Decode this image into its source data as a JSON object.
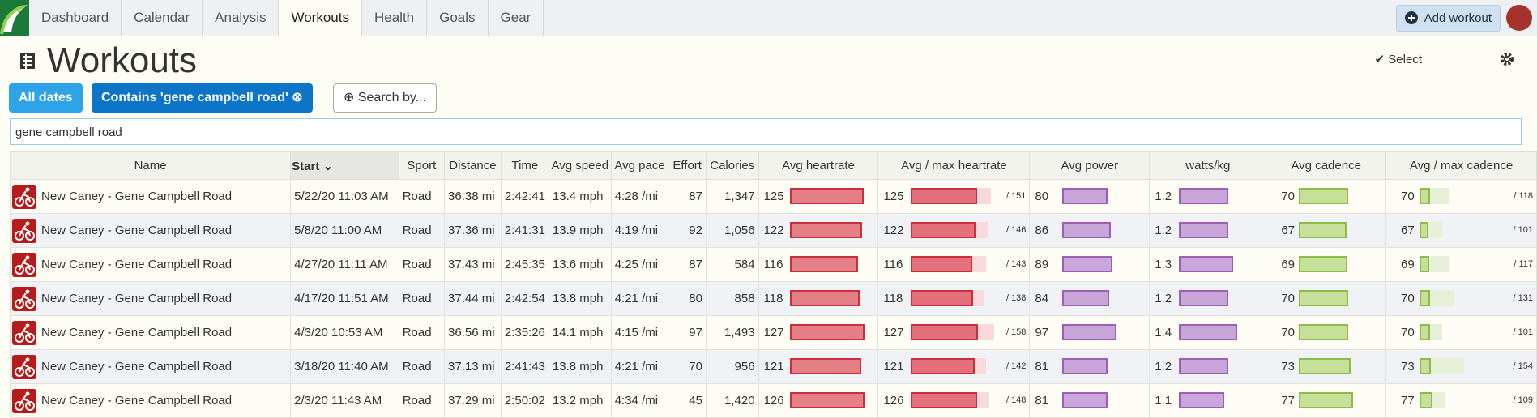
{
  "nav": {
    "items": [
      "Dashboard",
      "Calendar",
      "Analysis",
      "Workouts",
      "Health",
      "Goals",
      "Gear"
    ],
    "active": 3,
    "add_workout": "Add workout"
  },
  "header": {
    "title": "Workouts",
    "select": "Select"
  },
  "filters": {
    "all_dates": "All dates",
    "contains": "Contains 'gene campbell road'",
    "search_by": "Search by..."
  },
  "search": "gene campbell road",
  "table": {
    "sorted_column": 1,
    "columns": [
      "Name",
      "Start",
      "Sport",
      "Distance",
      "Time",
      "Avg speed",
      "Avg pace",
      "Effort",
      "Calories",
      "Avg heartrate",
      "Avg / max heartrate",
      "Avg power",
      "watts/kg",
      "Avg cadence",
      "Avg / max cadence"
    ],
    "rows": [
      {
        "name": "New Caney - Gene Campbell Road",
        "start": "5/22/20 11:03 AM",
        "sport": "Road",
        "distance": "36.38 mi",
        "time": "2:42:41",
        "speed": "13.4 mph",
        "pace": "4:28 /mi",
        "effort": 87,
        "calories": "1,347",
        "hr": 125,
        "max_hr": {
          "value": 151,
          "label": "/ 151"
        },
        "power": 80,
        "wkg": 1.2,
        "cadence": 70,
        "max_cadence": {
          "value": 118,
          "label": "/ 118"
        }
      },
      {
        "name": "New Caney - Gene Campbell Road",
        "start": "5/8/20 11:00 AM",
        "sport": "Road",
        "distance": "37.36 mi",
        "time": "2:41:31",
        "speed": "13.9 mph",
        "pace": "4:19 /mi",
        "effort": 92,
        "calories": "1,056",
        "hr": 122,
        "max_hr": {
          "value": 146,
          "label": "/ 146"
        },
        "power": 86,
        "wkg": 1.2,
        "cadence": 67,
        "max_cadence": {
          "value": 101,
          "label": "/ 101"
        }
      },
      {
        "name": "New Caney - Gene Campbell Road",
        "start": "4/27/20 11:11 AM",
        "sport": "Road",
        "distance": "37.43 mi",
        "time": "2:45:35",
        "speed": "13.6 mph",
        "pace": "4:25 /mi",
        "effort": 87,
        "calories": "584",
        "hr": 116,
        "max_hr": {
          "value": 143,
          "label": "/ 143"
        },
        "power": 89,
        "wkg": 1.3,
        "cadence": 69,
        "max_cadence": {
          "value": 117,
          "label": "/ 117"
        }
      },
      {
        "name": "New Caney - Gene Campbell Road",
        "start": "4/17/20 11:51 AM",
        "sport": "Road",
        "distance": "37.44 mi",
        "time": "2:42:54",
        "speed": "13.8 mph",
        "pace": "4:21 /mi",
        "effort": 80,
        "calories": "858",
        "hr": 118,
        "max_hr": {
          "value": 138,
          "label": "/ 138"
        },
        "power": 84,
        "wkg": 1.2,
        "cadence": 70,
        "max_cadence": {
          "value": 131,
          "label": "/ 131"
        }
      },
      {
        "name": "New Caney - Gene Campbell Road",
        "start": "4/3/20 10:53 AM",
        "sport": "Road",
        "distance": "36.56 mi",
        "time": "2:35:26",
        "speed": "14.1 mph",
        "pace": "4:15 /mi",
        "effort": 97,
        "calories": "1,493",
        "hr": 127,
        "max_hr": {
          "value": 158,
          "label": "/ 158"
        },
        "power": 97,
        "wkg": 1.4,
        "cadence": 70,
        "max_cadence": {
          "value": 101,
          "label": "/ 101"
        }
      },
      {
        "name": "New Caney - Gene Campbell Road",
        "start": "3/18/20 11:40 AM",
        "sport": "Road",
        "distance": "37.13 mi",
        "time": "2:41:43",
        "speed": "13.8 mph",
        "pace": "4:21 /mi",
        "effort": 70,
        "calories": "956",
        "hr": 121,
        "max_hr": {
          "value": 142,
          "label": "/ 142"
        },
        "power": 81,
        "wkg": 1.2,
        "cadence": 73,
        "max_cadence": {
          "value": 154,
          "label": "/ 154"
        }
      },
      {
        "name": "New Caney - Gene Campbell Road",
        "start": "2/3/20 11:43 AM",
        "sport": "Road",
        "distance": "37.29 mi",
        "time": "2:50:02",
        "speed": "13.2 mph",
        "pace": "4:34 /mi",
        "effort": 45,
        "calories": "1,420",
        "hr": 126,
        "max_hr": {
          "value": 148,
          "label": "/ 148"
        },
        "power": 81,
        "wkg": 1.1,
        "cadence": 77,
        "max_cadence": {
          "value": 109,
          "label": "/ 109"
        }
      }
    ]
  }
}
